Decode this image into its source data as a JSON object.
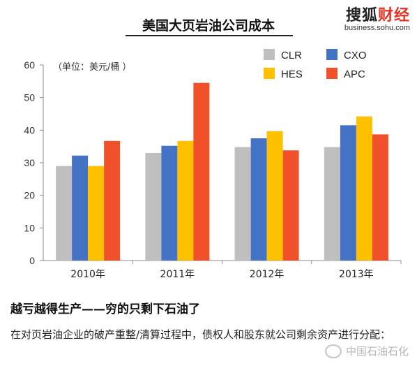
{
  "brand": {
    "name_part1": "搜狐",
    "name_part2": "财经",
    "url": "business.sohu.com"
  },
  "chart_title": "美国大页岩油公司成本",
  "unit_label": "（单位：美元/桶 ）",
  "chart_data": {
    "type": "bar",
    "title": "美国大页岩油公司成本",
    "xlabel": "",
    "ylabel": "",
    "ylim": [
      0,
      60
    ],
    "yticks": [
      0,
      10,
      20,
      30,
      40,
      50,
      60
    ],
    "grid": false,
    "legend_position": "top-right",
    "categories": [
      "2010年",
      "2011年",
      "2012年",
      "2013年"
    ],
    "series": [
      {
        "name": "CLR",
        "color": "#bfbfbf",
        "values": [
          29,
          33,
          34.8,
          34.8
        ]
      },
      {
        "name": "CXO",
        "color": "#4472c4",
        "values": [
          32.2,
          35.2,
          37.5,
          41.5
        ]
      },
      {
        "name": "HES",
        "color": "#ffc000",
        "values": [
          29,
          36.7,
          39.7,
          44.2
        ]
      },
      {
        "name": "APC",
        "color": "#f0502a",
        "values": [
          36.7,
          54.5,
          33.8,
          38.7
        ]
      }
    ]
  },
  "headline": "越亏越得生产——穷的只剩下石油了",
  "body_text": "在对页岩油企业的破产重整/清算过程中，债权人和股东就公司剩余资产进行分配：",
  "watermark": "中国石油石化"
}
